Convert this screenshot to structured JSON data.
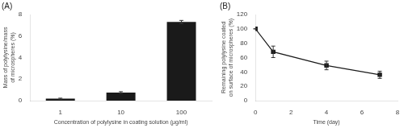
{
  "chart_data": [
    {
      "type": "bar",
      "title": "(A)",
      "categories": [
        "1",
        "10",
        "100"
      ],
      "values": [
        0.18,
        0.75,
        7.3
      ],
      "errors": [
        0.05,
        0.08,
        0.15
      ],
      "color": "#1a1a1a",
      "xlabel": "Concentration of polylysine in coating solution (µg/ml)",
      "ylabel": "Mass of polylysine/mass\nof microspheres (%)",
      "ylim": [
        0,
        8
      ],
      "yticks": [
        0,
        2,
        4,
        6,
        8
      ],
      "grid": false
    },
    {
      "type": "line",
      "title": "(B)",
      "x": [
        0,
        1,
        4,
        7
      ],
      "values": [
        100,
        68,
        49,
        36
      ],
      "errors": [
        0,
        8,
        6,
        5
      ],
      "color": "#1a1a1a",
      "marker": "square",
      "xlabel": "Time (day)",
      "ylabel": "Remaining polylysine coated\non surface of microspheres (%)",
      "xlim": [
        0,
        8
      ],
      "xticks": [
        0,
        2,
        4,
        6,
        8
      ],
      "ylim": [
        0,
        120
      ],
      "yticks": [
        0,
        20,
        40,
        60,
        80,
        100,
        120
      ],
      "grid": false
    }
  ]
}
